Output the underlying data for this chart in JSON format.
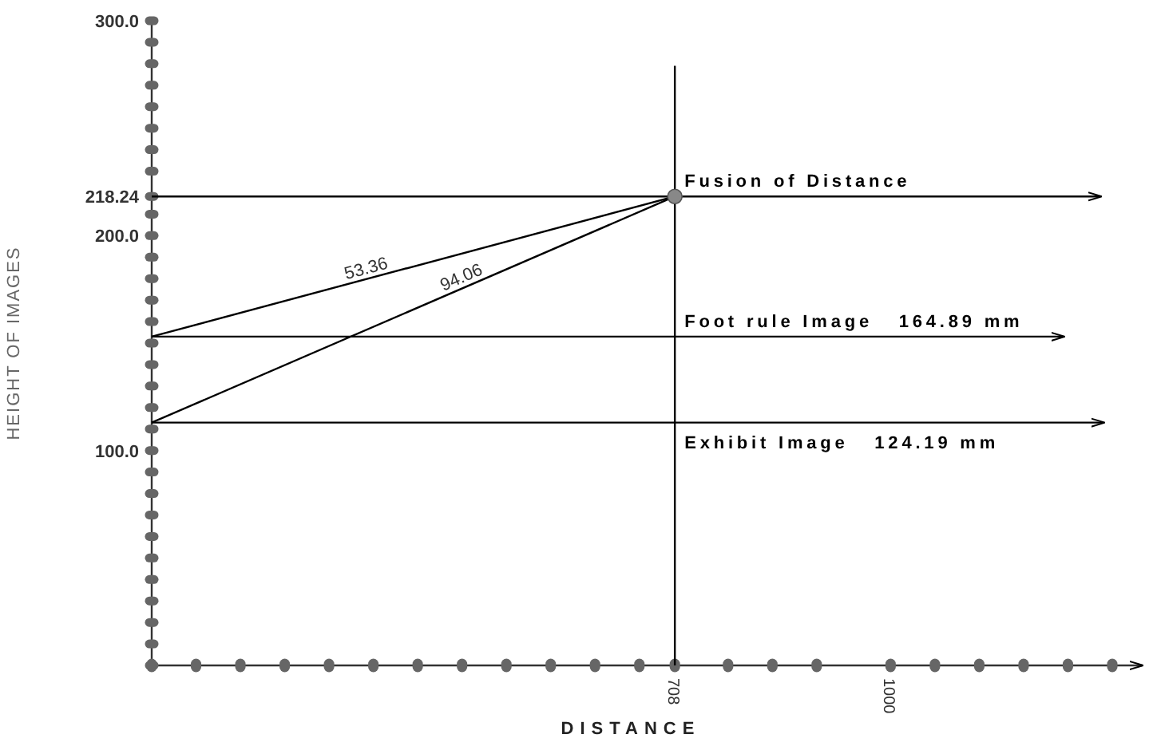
{
  "chart_data": {
    "type": "line",
    "xlabel": "DISTANCE",
    "ylabel": "HEIGHT OF IMAGES",
    "xlim": [
      0,
      1340
    ],
    "ylim": [
      0,
      300
    ],
    "xticks": [
      {
        "value": 0,
        "label": null
      },
      {
        "value": 60,
        "label": null
      },
      {
        "value": 120,
        "label": null
      },
      {
        "value": 180,
        "label": null
      },
      {
        "value": 240,
        "label": null
      },
      {
        "value": 300,
        "label": null
      },
      {
        "value": 360,
        "label": null
      },
      {
        "value": 420,
        "label": null
      },
      {
        "value": 480,
        "label": null
      },
      {
        "value": 540,
        "label": null
      },
      {
        "value": 600,
        "label": null
      },
      {
        "value": 660,
        "label": null
      },
      {
        "value": 708,
        "label": "708"
      },
      {
        "value": 780,
        "label": null
      },
      {
        "value": 840,
        "label": null
      },
      {
        "value": 900,
        "label": null
      },
      {
        "value": 1000,
        "label": "1000"
      },
      {
        "value": 1060,
        "label": null
      },
      {
        "value": 1120,
        "label": null
      },
      {
        "value": 1180,
        "label": null
      },
      {
        "value": 1240,
        "label": null
      },
      {
        "value": 1300,
        "label": null
      }
    ],
    "yticks": [
      {
        "value": 0,
        "label": null
      },
      {
        "value": 10,
        "label": null
      },
      {
        "value": 20,
        "label": null
      },
      {
        "value": 30,
        "label": null
      },
      {
        "value": 40,
        "label": null
      },
      {
        "value": 50,
        "label": null
      },
      {
        "value": 60,
        "label": null
      },
      {
        "value": 70,
        "label": null
      },
      {
        "value": 80,
        "label": null
      },
      {
        "value": 90,
        "label": null
      },
      {
        "value": 100,
        "label": "100.0"
      },
      {
        "value": 110,
        "label": null
      },
      {
        "value": 120,
        "label": null
      },
      {
        "value": 130,
        "label": null
      },
      {
        "value": 140,
        "label": null
      },
      {
        "value": 150,
        "label": null
      },
      {
        "value": 160,
        "label": null
      },
      {
        "value": 170,
        "label": null
      },
      {
        "value": 180,
        "label": null
      },
      {
        "value": 190,
        "label": null
      },
      {
        "value": 200,
        "label": "200.0"
      },
      {
        "value": 210,
        "label": null
      },
      {
        "value": 218.24,
        "label": "218.24"
      },
      {
        "value": 230,
        "label": null
      },
      {
        "value": 240,
        "label": null
      },
      {
        "value": 250,
        "label": null
      },
      {
        "value": 260,
        "label": null
      },
      {
        "value": 270,
        "label": null
      },
      {
        "value": 280,
        "label": null
      },
      {
        "value": 290,
        "label": null
      },
      {
        "value": 300,
        "label": "300.0"
      }
    ],
    "grid": false,
    "line_style": "solid",
    "series": [
      {
        "name": "Fusion of Distance",
        "color": "#000000",
        "x": [
          0,
          1284
        ],
        "values": [
          218.24,
          218.24
        ]
      },
      {
        "name": "Foot rule Image   164.89 mm",
        "color": "#000000",
        "x": [
          0,
          1234
        ],
        "values": [
          153,
          153
        ]
      },
      {
        "name": "Exhibit Image   124.19 mm",
        "color": "#000000",
        "x": [
          0,
          1288
        ],
        "values": [
          113,
          113
        ]
      },
      {
        "color": "#000000",
        "x": [
          0,
          708
        ],
        "values": [
          153,
          218.24
        ]
      },
      {
        "color": "#000000",
        "x": [
          0,
          708
        ],
        "values": [
          113,
          218.24
        ]
      },
      {
        "color": "#000000",
        "x": [
          708,
          708
        ],
        "values": [
          0,
          279
        ]
      },
      {
        "type": "scatter",
        "marker": "circle",
        "color": "#888888",
        "x": [
          708
        ],
        "values": [
          218.24
        ]
      }
    ],
    "annotations": [
      {
        "text": "53.36",
        "x": 292,
        "y": 180
      },
      {
        "text": "94.06",
        "x": 422,
        "y": 176
      }
    ]
  }
}
